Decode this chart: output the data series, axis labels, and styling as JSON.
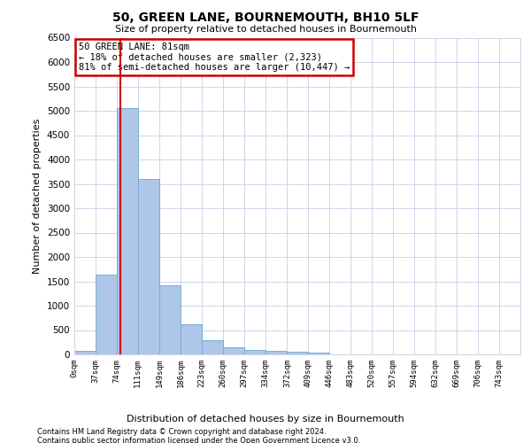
{
  "title": "50, GREEN LANE, BOURNEMOUTH, BH10 5LF",
  "subtitle": "Size of property relative to detached houses in Bournemouth",
  "xlabel": "Distribution of detached houses by size in Bournemouth",
  "ylabel": "Number of detached properties",
  "footer_line1": "Contains HM Land Registry data © Crown copyright and database right 2024.",
  "footer_line2": "Contains public sector information licensed under the Open Government Licence v3.0.",
  "annotation_title": "50 GREEN LANE: 81sqm",
  "annotation_line1": "← 18% of detached houses are smaller (2,323)",
  "annotation_line2": "81% of semi-detached houses are larger (10,447) →",
  "property_size_sqm": 81,
  "bar_color": "#aec6e8",
  "bar_edge_color": "#7aadd4",
  "marker_line_color": "#cc0000",
  "annotation_box_color": "#cc0000",
  "background_color": "#ffffff",
  "grid_color": "#ccd6e8",
  "tick_labels": [
    "0sqm",
    "37sqm",
    "74sqm",
    "111sqm",
    "149sqm",
    "186sqm",
    "223sqm",
    "260sqm",
    "297sqm",
    "334sqm",
    "372sqm",
    "409sqm",
    "446sqm",
    "483sqm",
    "520sqm",
    "557sqm",
    "594sqm",
    "632sqm",
    "669sqm",
    "706sqm",
    "743sqm"
  ],
  "bin_edges": [
    0,
    37,
    74,
    111,
    149,
    186,
    223,
    260,
    297,
    334,
    372,
    409,
    446,
    483,
    520,
    557,
    594,
    632,
    669,
    706,
    743,
    780
  ],
  "bar_heights": [
    75,
    1630,
    5060,
    3600,
    1410,
    620,
    290,
    150,
    100,
    75,
    55,
    45,
    0,
    0,
    0,
    0,
    0,
    0,
    0,
    0,
    0
  ],
  "ylim": [
    0,
    6500
  ],
  "yticks": [
    0,
    500,
    1000,
    1500,
    2000,
    2500,
    3000,
    3500,
    4000,
    4500,
    5000,
    5500,
    6000,
    6500
  ]
}
